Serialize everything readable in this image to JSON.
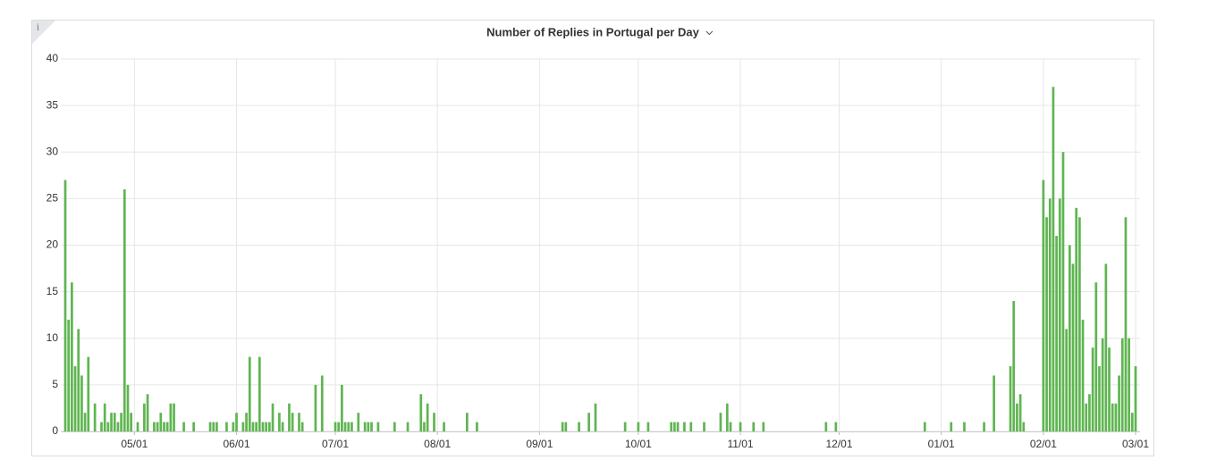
{
  "panel": {
    "info_icon": "i"
  },
  "chart_data": {
    "type": "bar",
    "title": "Number of Replies in Portugal per Day",
    "color": "#5fb551",
    "grid": true,
    "ylim": [
      0,
      40
    ],
    "yticks": [
      0,
      5,
      10,
      15,
      20,
      25,
      30,
      35,
      40
    ],
    "xticks": [
      "05/01",
      "06/01",
      "07/01",
      "08/01",
      "09/01",
      "10/01",
      "11/01",
      "12/01",
      "01/01",
      "02/01",
      "03/01"
    ],
    "categories": [
      "04/10",
      "04/11",
      "04/12",
      "04/13",
      "04/14",
      "04/15",
      "04/16",
      "04/17",
      "04/18",
      "04/19",
      "04/20",
      "04/21",
      "04/22",
      "04/23",
      "04/24",
      "04/25",
      "04/26",
      "04/27",
      "04/28",
      "04/29",
      "04/30",
      "05/01",
      "05/02",
      "05/03",
      "05/04",
      "05/05",
      "05/06",
      "05/07",
      "05/08",
      "05/09",
      "05/10",
      "05/11",
      "05/12",
      "05/13",
      "05/14",
      "05/15",
      "05/16",
      "05/17",
      "05/18",
      "05/19",
      "05/20",
      "05/21",
      "05/22",
      "05/23",
      "05/24",
      "05/25",
      "05/26",
      "05/27",
      "05/28",
      "05/29",
      "05/30",
      "05/31",
      "06/01",
      "06/02",
      "06/03",
      "06/04",
      "06/05",
      "06/06",
      "06/07",
      "06/08",
      "06/09",
      "06/10",
      "06/11",
      "06/12",
      "06/13",
      "06/14",
      "06/15",
      "06/16",
      "06/17",
      "06/18",
      "06/19",
      "06/20",
      "06/21",
      "06/22",
      "06/23",
      "06/24",
      "06/25",
      "06/26",
      "06/27",
      "06/28",
      "06/29",
      "06/30",
      "07/01",
      "07/02",
      "07/03",
      "07/04",
      "07/05",
      "07/06",
      "07/07",
      "07/08",
      "07/09",
      "07/10",
      "07/11",
      "07/12",
      "07/13",
      "07/14",
      "07/15",
      "07/16",
      "07/17",
      "07/18",
      "07/19",
      "07/20",
      "07/21",
      "07/22",
      "07/23",
      "07/24",
      "07/25",
      "07/26",
      "07/27",
      "07/28",
      "07/29",
      "07/30",
      "07/31",
      "08/01",
      "08/02",
      "08/03",
      "08/04",
      "08/05",
      "08/06",
      "08/07",
      "08/08",
      "08/09",
      "08/10",
      "08/11",
      "08/12",
      "08/13",
      "08/14",
      "08/15",
      "08/16",
      "08/17",
      "08/18",
      "08/19",
      "08/20",
      "08/21",
      "08/22",
      "08/23",
      "08/24",
      "08/25",
      "08/26",
      "08/27",
      "08/28",
      "08/29",
      "08/30",
      "08/31",
      "09/01",
      "09/02",
      "09/03",
      "09/04",
      "09/05",
      "09/06",
      "09/07",
      "09/08",
      "09/09",
      "09/10",
      "09/11",
      "09/12",
      "09/13",
      "09/14",
      "09/15",
      "09/16",
      "09/17",
      "09/18",
      "09/19",
      "09/20",
      "09/21",
      "09/22",
      "09/23",
      "09/24",
      "09/25",
      "09/26",
      "09/27",
      "09/28",
      "09/29",
      "09/30",
      "10/01",
      "10/02",
      "10/03",
      "10/04",
      "10/05",
      "10/06",
      "10/07",
      "10/08",
      "10/09",
      "10/10",
      "10/11",
      "10/12",
      "10/13",
      "10/14",
      "10/15",
      "10/16",
      "10/17",
      "10/18",
      "10/19",
      "10/20",
      "10/21",
      "10/22",
      "10/23",
      "10/24",
      "10/25",
      "10/26",
      "10/27",
      "10/28",
      "10/29",
      "10/30",
      "10/31",
      "11/01",
      "11/02",
      "11/03",
      "11/04",
      "11/05",
      "11/06",
      "11/07",
      "11/08",
      "11/09",
      "11/10",
      "11/11",
      "11/12",
      "11/13",
      "11/14",
      "11/15",
      "11/16",
      "11/17",
      "11/18",
      "11/19",
      "11/20",
      "11/21",
      "11/22",
      "11/23",
      "11/24",
      "11/25",
      "11/26",
      "11/27",
      "11/28",
      "11/29",
      "11/30",
      "12/01",
      "12/02",
      "12/03",
      "12/04",
      "12/05",
      "12/06",
      "12/07",
      "12/08",
      "12/09",
      "12/10",
      "12/11",
      "12/12",
      "12/13",
      "12/14",
      "12/15",
      "12/16",
      "12/17",
      "12/18",
      "12/19",
      "12/20",
      "12/21",
      "12/22",
      "12/23",
      "12/24",
      "12/25",
      "12/26",
      "12/27",
      "12/28",
      "12/29",
      "12/30",
      "12/31",
      "01/01",
      "01/02",
      "01/03",
      "01/04",
      "01/05",
      "01/06",
      "01/07",
      "01/08",
      "01/09",
      "01/10",
      "01/11",
      "01/12",
      "01/13",
      "01/14",
      "01/15",
      "01/16",
      "01/17",
      "01/18",
      "01/19",
      "01/20",
      "01/21",
      "01/22",
      "01/23",
      "01/24",
      "01/25",
      "01/26",
      "01/27",
      "01/28",
      "01/29",
      "01/30",
      "01/31",
      "02/01",
      "02/02",
      "02/03",
      "02/04",
      "02/05",
      "02/06",
      "02/07",
      "02/08",
      "02/09",
      "02/10",
      "02/11",
      "02/12",
      "02/13",
      "02/14",
      "02/15",
      "02/16",
      "02/17",
      "02/18",
      "02/19",
      "02/20",
      "02/21",
      "02/22",
      "02/23",
      "02/24",
      "02/25",
      "02/26",
      "02/27",
      "02/28",
      "03/01"
    ],
    "values": [
      27,
      12,
      16,
      7,
      11,
      6,
      2,
      8,
      0,
      3,
      0,
      1,
      3,
      1,
      2,
      2,
      1,
      2,
      26,
      5,
      2,
      0,
      1,
      0,
      3,
      4,
      0,
      1,
      1,
      2,
      1,
      1,
      3,
      3,
      0,
      0,
      1,
      0,
      0,
      1,
      0,
      0,
      0,
      0,
      1,
      1,
      1,
      0,
      0,
      1,
      0,
      1,
      2,
      0,
      1,
      2,
      8,
      1,
      1,
      8,
      1,
      1,
      1,
      3,
      0,
      2,
      1,
      0,
      3,
      2,
      0,
      2,
      1,
      0,
      0,
      0,
      5,
      0,
      6,
      0,
      0,
      0,
      1,
      1,
      5,
      1,
      1,
      1,
      0,
      2,
      0,
      1,
      1,
      1,
      0,
      1,
      0,
      0,
      0,
      0,
      1,
      0,
      0,
      0,
      1,
      0,
      0,
      0,
      4,
      1,
      3,
      0,
      2,
      0,
      0,
      1,
      0,
      0,
      0,
      0,
      0,
      0,
      2,
      0,
      0,
      1,
      0,
      0,
      0,
      0,
      0,
      0,
      0,
      0,
      0,
      0,
      0,
      0,
      0,
      0,
      0,
      0,
      0,
      0,
      0,
      0,
      0,
      0,
      0,
      0,
      0,
      1,
      1,
      0,
      0,
      0,
      1,
      0,
      0,
      2,
      0,
      3,
      0,
      0,
      0,
      0,
      0,
      0,
      0,
      0,
      1,
      0,
      0,
      0,
      1,
      0,
      0,
      1,
      0,
      0,
      0,
      0,
      0,
      0,
      1,
      1,
      1,
      0,
      1,
      0,
      1,
      0,
      0,
      0,
      1,
      0,
      0,
      0,
      0,
      2,
      0,
      3,
      1,
      0,
      0,
      1,
      0,
      0,
      0,
      1,
      0,
      0,
      1,
      0,
      0,
      0,
      0,
      0,
      0,
      0,
      0,
      0,
      0,
      0,
      0,
      0,
      0,
      0,
      0,
      0,
      0,
      1,
      0,
      0,
      1,
      0,
      0,
      0,
      0,
      0,
      0,
      0,
      0,
      0,
      0,
      0,
      0,
      0,
      0,
      0,
      0,
      0,
      0,
      0,
      0,
      0,
      0,
      0,
      0,
      0,
      0,
      1,
      0,
      0,
      0,
      0,
      0,
      0,
      0,
      1,
      0,
      0,
      0,
      1,
      0,
      0,
      0,
      0,
      0,
      1,
      0,
      0,
      6,
      0,
      0,
      0,
      0,
      7,
      14,
      3,
      4,
      1,
      0,
      0,
      0,
      0,
      0,
      27,
      23,
      25,
      37,
      21,
      25,
      30,
      11,
      20,
      18,
      24,
      23,
      12,
      3,
      4,
      9,
      16,
      7,
      10,
      18,
      9,
      3,
      3,
      6,
      10,
      23,
      10,
      2,
      7
    ]
  }
}
